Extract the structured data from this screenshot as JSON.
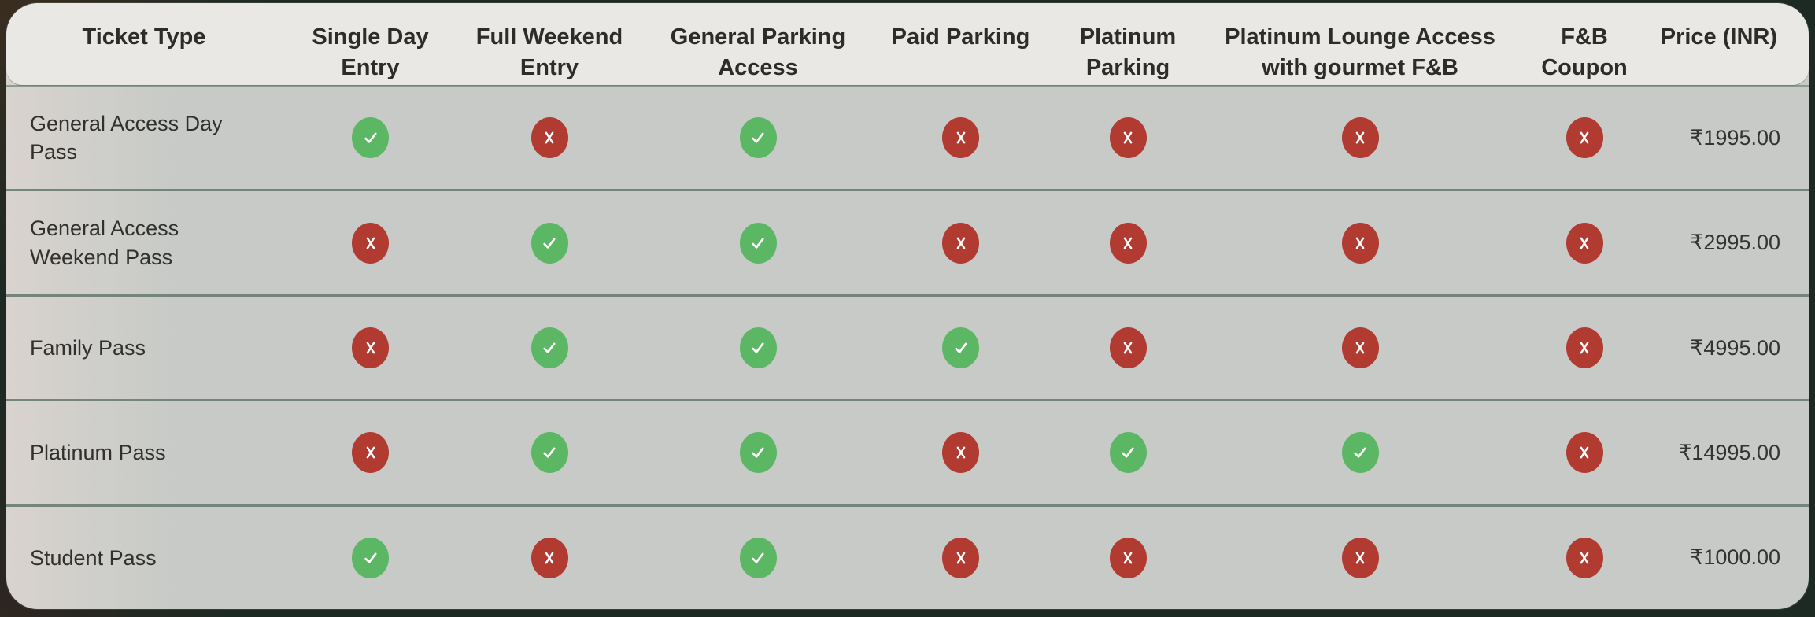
{
  "table": {
    "columns": [
      {
        "key": "ticket_type",
        "label": "Ticket Type"
      },
      {
        "key": "single_day_entry",
        "label": "Single Day\nEntry"
      },
      {
        "key": "full_weekend_entry",
        "label": "Full Weekend\nEntry"
      },
      {
        "key": "general_parking_access",
        "label": "General Parking\nAccess"
      },
      {
        "key": "paid_parking",
        "label": "Paid Parking"
      },
      {
        "key": "platinum_parking",
        "label": "Platinum\nParking"
      },
      {
        "key": "platinum_lounge",
        "label": "Platinum Lounge Access\nwith gourmet F&B"
      },
      {
        "key": "fb_coupon",
        "label": "F&B\nCoupon"
      },
      {
        "key": "price",
        "label": "Price (INR)"
      }
    ],
    "rows": [
      {
        "ticket_type": "General Access Day Pass",
        "features": [
          true,
          false,
          true,
          false,
          false,
          false,
          false
        ],
        "price": "₹1995.00"
      },
      {
        "ticket_type": "General Access Weekend Pass",
        "features": [
          false,
          true,
          true,
          false,
          false,
          false,
          false
        ],
        "price": "₹2995.00"
      },
      {
        "ticket_type": "Family Pass",
        "features": [
          false,
          true,
          true,
          true,
          false,
          false,
          false
        ],
        "price": "₹4995.00"
      },
      {
        "ticket_type": "Platinum Pass",
        "features": [
          false,
          true,
          true,
          false,
          true,
          true,
          false
        ],
        "price": "₹14995.00"
      },
      {
        "ticket_type": "Student Pass",
        "features": [
          true,
          false,
          true,
          false,
          false,
          false,
          false
        ],
        "price": "₹1000.00"
      }
    ]
  },
  "icons": {
    "yes": "check-circle-icon",
    "no": "cross-circle-icon"
  },
  "colors": {
    "check_green": "#5cb764",
    "cross_red": "#b13a31",
    "glyph_white": "#ffffff",
    "header_bg": "#e9e8e5",
    "row_bg": "#c7cac7",
    "page_bg": "#1d2a23",
    "divider": "#75857b",
    "header_text": "#2c2c2a",
    "body_text": "#30302e"
  }
}
